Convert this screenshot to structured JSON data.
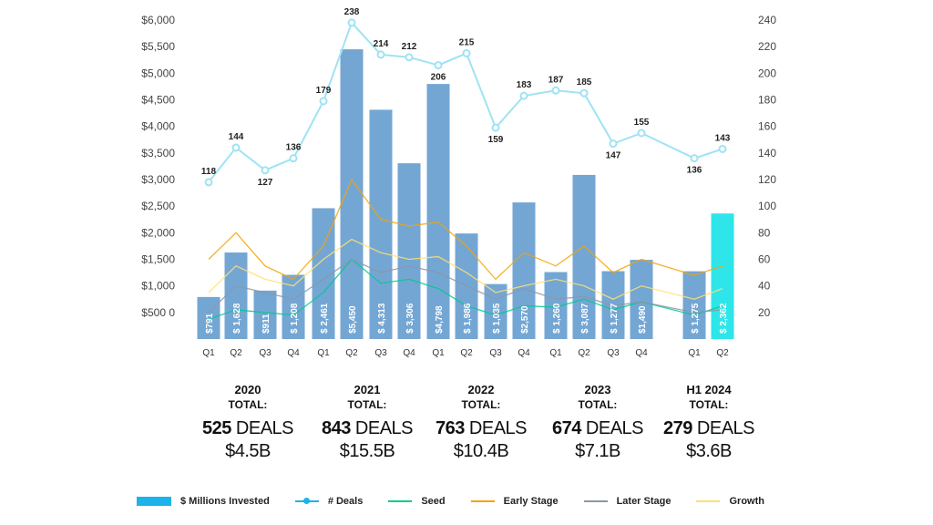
{
  "chart_data": {
    "type": "bar",
    "title": "",
    "left_axis": {
      "unit": "$ Millions",
      "range": [
        0,
        6000
      ],
      "ticks": [
        "$500 0",
        "$1,000",
        "$1,500",
        "$2,000",
        "$2,500",
        "$3,000",
        "$3,500",
        "$4,000",
        "$4,500",
        "$5,000",
        "$5,500",
        "$6,000"
      ]
    },
    "right_axis": {
      "unit": "# Deals",
      "range": [
        0,
        240
      ],
      "ticks": [
        "20",
        "40",
        "60",
        "80",
        "100",
        "120",
        "140",
        "160",
        "180",
        "200",
        "220",
        "240"
      ]
    },
    "categories": [
      "Q1",
      "Q2",
      "Q3",
      "Q4",
      "Q1",
      "Q2",
      "Q3",
      "Q4",
      "Q1",
      "Q2",
      "Q3",
      "Q4",
      "Q1",
      "Q2",
      "Q3",
      "Q4",
      "Q1",
      "Q2"
    ],
    "series": [
      {
        "name": "$ Millions Invested",
        "kind": "bar",
        "color": "#74a6d4",
        "highlight_color": "#2ee6ea",
        "values": [
          791,
          1628,
          911,
          1208,
          2461,
          5450,
          4313,
          3306,
          4798,
          1986,
          1035,
          2570,
          1260,
          3087,
          1277,
          1490,
          1275,
          2362
        ],
        "labels": [
          "$791",
          "$ 1,628",
          "$911",
          "$ 1,208",
          "$ 2,461",
          "$5,450",
          "$ 4,313",
          "$ 3,306",
          "$4,798",
          "$ 1,986",
          "$ 1,035",
          "$2,570",
          "$ 1,260",
          "$ 3,087",
          "$ 1,277",
          "$1,490",
          "$ 1,275",
          "$ 2,362"
        ]
      },
      {
        "name": "# Deals",
        "kind": "line",
        "color": "#9fe3f3",
        "values": [
          118,
          144,
          127,
          136,
          179,
          238,
          214,
          212,
          206,
          215,
          159,
          183,
          187,
          185,
          147,
          155,
          136,
          143
        ]
      },
      {
        "name": "Seed",
        "kind": "line",
        "color": "#00c98d",
        "values": [
          15,
          22,
          20,
          18,
          35,
          60,
          42,
          45,
          38,
          25,
          18,
          25,
          24,
          30,
          22,
          28,
          18,
          25
        ]
      },
      {
        "name": "Early Stage",
        "kind": "line",
        "color": "#f5a300",
        "values": [
          60,
          80,
          55,
          45,
          70,
          120,
          90,
          85,
          88,
          70,
          45,
          65,
          55,
          70,
          50,
          60,
          48,
          55
        ]
      },
      {
        "name": "Later Stage",
        "kind": "line",
        "color": "#8b97a8",
        "values": [
          20,
          40,
          35,
          30,
          45,
          60,
          50,
          55,
          50,
          40,
          30,
          38,
          30,
          32,
          25,
          28,
          20,
          22
        ]
      },
      {
        "name": "Growth",
        "kind": "line",
        "color": "#ffe070",
        "values": [
          35,
          55,
          45,
          40,
          60,
          75,
          65,
          60,
          62,
          50,
          35,
          40,
          45,
          40,
          30,
          40,
          30,
          38
        ]
      }
    ],
    "count_labels": [
      "118",
      "144",
      "127",
      "136",
      "179",
      "238",
      "214",
      "212",
      "206",
      "215",
      "159",
      "183",
      "187",
      "185",
      "147",
      "155",
      "136",
      "143"
    ],
    "legend_placement": "bottom"
  },
  "summary": [
    {
      "year": "2020",
      "total": "TOTAL:",
      "deals_num": "525",
      "deals_word": "DEALS",
      "amount": "$4.5B"
    },
    {
      "year": "2021",
      "total": "TOTAL:",
      "deals_num": "843",
      "deals_word": "DEALS",
      "amount": "$15.5B"
    },
    {
      "year": "2022",
      "total": "TOTAL:",
      "deals_num": "763",
      "deals_word": "DEALS",
      "amount": "$10.4B"
    },
    {
      "year": "2023",
      "total": "TOTAL:",
      "deals_num": "674",
      "deals_word": "DEALS",
      "amount": "$7.1B"
    },
    {
      "year": "H1 2024",
      "total": "TOTAL:",
      "deals_num": "279",
      "deals_word": "DEALS",
      "amount": "$3.6B"
    }
  ],
  "legend": [
    {
      "label": "$ Millions Invested",
      "color": "#1ab3ea"
    },
    {
      "label": "# Deals",
      "color": "#1ab3ea"
    },
    {
      "label": "Seed",
      "color": "#00c98d"
    },
    {
      "label": "Early Stage",
      "color": "#f5a300"
    },
    {
      "label": "Later Stage",
      "color": "#8b97a8"
    },
    {
      "label": "Growth",
      "color": "#ffe070"
    }
  ]
}
